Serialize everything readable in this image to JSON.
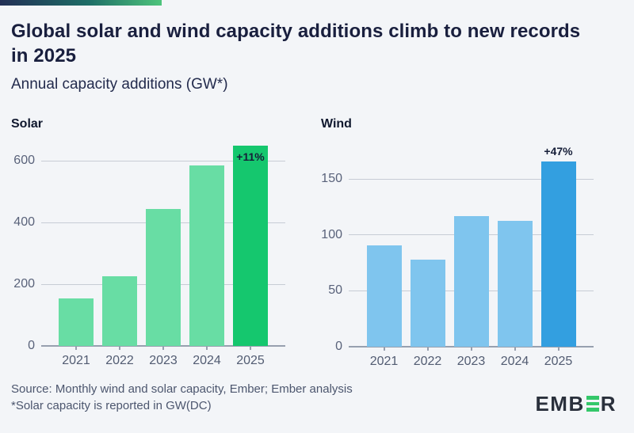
{
  "header": {
    "title": "Global solar and wind capacity additions climb to new records in 2025",
    "subtitle": "Annual capacity additions (GW*)"
  },
  "footer": {
    "source_line1": "Source: Monthly wind and solar capacity, Ember; Ember analysis",
    "source_line2": "*Solar capacity is reported in GW(DC)",
    "logo_left": "EMB",
    "logo_right": "R",
    "logo_icon": "ember-green-e-bars-icon"
  },
  "colors": {
    "background": "#f3f5f8",
    "title_text": "#191f3e",
    "axis_text": "#59627a",
    "solar_bar": "#68dda4",
    "solar_highlight": "#15c76e",
    "wind_bar": "#7fc5ee",
    "wind_highlight": "#339fe0",
    "accent_gradient_start": "#222f55",
    "accent_gradient_end": "#4ec47c"
  },
  "chart_data": [
    {
      "type": "bar",
      "title": "Solar",
      "categories": [
        "2021",
        "2022",
        "2023",
        "2024",
        "2025"
      ],
      "values": [
        155,
        226,
        444,
        585,
        650
      ],
      "unit": "GW",
      "ylim": [
        0,
        660
      ],
      "yticks": [
        0,
        200,
        400,
        600
      ],
      "grid": true,
      "legend": "none",
      "bar_color": "#68dda4",
      "highlight_index": 4,
      "highlight_color": "#15c76e",
      "annotation": {
        "index": 4,
        "text": "+11%",
        "placement": "inside-top"
      }
    },
    {
      "type": "bar",
      "title": "Wind",
      "categories": [
        "2021",
        "2022",
        "2023",
        "2024",
        "2025"
      ],
      "values": [
        91,
        78,
        117,
        113,
        166
      ],
      "unit": "GW",
      "ylim": [
        0,
        175
      ],
      "yticks": [
        0,
        50,
        100,
        150
      ],
      "grid": true,
      "legend": "none",
      "bar_color": "#7fc5ee",
      "highlight_index": 4,
      "highlight_color": "#339fe0",
      "annotation": {
        "index": 4,
        "text": "+47%",
        "placement": "above"
      }
    }
  ]
}
